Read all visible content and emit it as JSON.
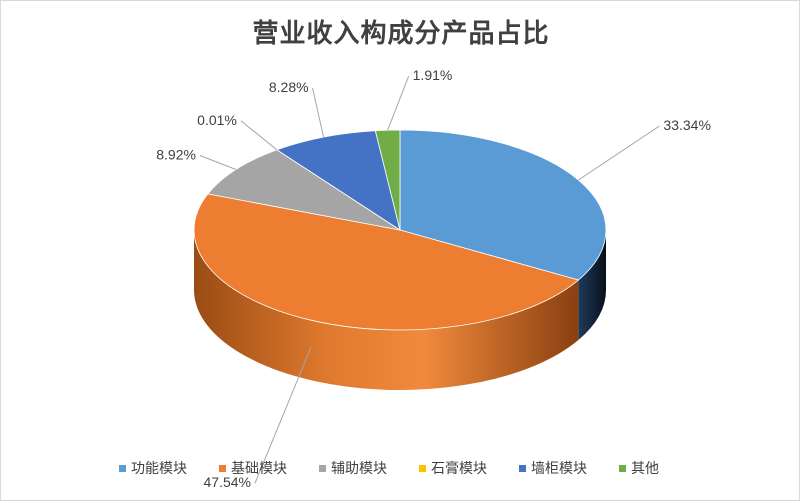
{
  "chart_data": {
    "type": "pie",
    "title": "营业收入构成分产品占比",
    "categories": [
      "功能模块",
      "基础模块",
      "辅助模块",
      "石膏模块",
      "墙柜模块",
      "其他"
    ],
    "values": [
      33.34,
      47.54,
      8.92,
      0.01,
      8.28,
      1.91
    ],
    "labels": [
      "33.34%",
      "47.54%",
      "8.92%",
      "0.01%",
      "8.28%",
      "1.91%"
    ],
    "colors": [
      "#5b9bd5",
      "#ed7d31",
      "#a5a5a5",
      "#ffc000",
      "#4472c4",
      "#70ad47"
    ],
    "legend_position": "bottom",
    "style": "3d"
  }
}
